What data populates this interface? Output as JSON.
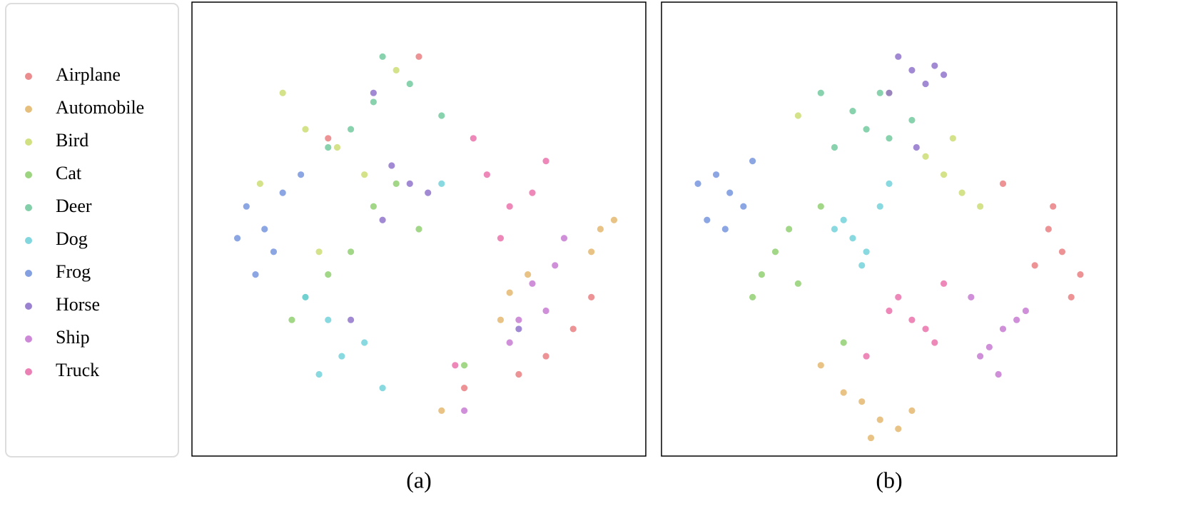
{
  "chart_data": [
    {
      "type": "scatter",
      "title": "(a)",
      "xlim": [
        0,
        100
      ],
      "ylim": [
        0,
        100
      ],
      "series": [
        {
          "name": "Airplane",
          "color": "#e8787a",
          "x": [
            78,
            84,
            72,
            88,
            60,
            30,
            50
          ],
          "y": [
            22,
            28,
            18,
            35,
            15,
            70,
            88
          ]
        },
        {
          "name": "Automobile",
          "color": "#e2b466",
          "x": [
            90,
            88,
            93,
            70,
            68,
            74,
            55
          ],
          "y": [
            50,
            45,
            52,
            36,
            30,
            40,
            10
          ]
        },
        {
          "name": "Bird",
          "color": "#c9dc6b",
          "x": [
            25,
            32,
            20,
            38,
            45,
            15,
            28
          ],
          "y": [
            72,
            68,
            80,
            62,
            85,
            60,
            45
          ]
        },
        {
          "name": "Cat",
          "color": "#8ccd6a",
          "x": [
            40,
            35,
            45,
            30,
            50,
            22,
            60
          ],
          "y": [
            55,
            45,
            60,
            40,
            50,
            30,
            20
          ]
        },
        {
          "name": "Deer",
          "color": "#6cc79a",
          "x": [
            40,
            35,
            48,
            30,
            55,
            42,
            25
          ],
          "y": [
            78,
            72,
            82,
            68,
            75,
            88,
            35
          ]
        },
        {
          "name": "Dog",
          "color": "#6ccfd8",
          "x": [
            33,
            28,
            38,
            30,
            42,
            25,
            55
          ],
          "y": [
            22,
            18,
            25,
            30,
            15,
            35,
            60
          ]
        },
        {
          "name": "Frog",
          "color": "#6f8fdc",
          "x": [
            12,
            16,
            20,
            10,
            18,
            24,
            14
          ],
          "y": [
            55,
            50,
            58,
            48,
            45,
            62,
            40
          ]
        },
        {
          "name": "Horse",
          "color": "#8a6cc8",
          "x": [
            48,
            44,
            52,
            42,
            72,
            40,
            35
          ],
          "y": [
            60,
            64,
            58,
            52,
            28,
            80,
            30
          ]
        },
        {
          "name": "Ship",
          "color": "#c474d0",
          "x": [
            75,
            78,
            72,
            80,
            70,
            82,
            60
          ],
          "y": [
            38,
            32,
            30,
            42,
            25,
            48,
            10
          ]
        },
        {
          "name": "Truck",
          "color": "#e86aa8",
          "x": [
            70,
            65,
            75,
            68,
            78,
            62,
            58
          ],
          "y": [
            55,
            62,
            58,
            48,
            65,
            70,
            20
          ]
        }
      ]
    },
    {
      "type": "scatter",
      "title": "(b)",
      "xlim": [
        0,
        100
      ],
      "ylim": [
        0,
        100
      ],
      "series": [
        {
          "color": "#e8787a",
          "x": [
            88,
            85,
            92,
            82,
            90,
            86,
            75
          ],
          "y": [
            45,
            50,
            40,
            42,
            35,
            55,
            60
          ]
        },
        {
          "color": "#e2b466",
          "x": [
            48,
            44,
            52,
            40,
            55,
            46,
            35
          ],
          "y": [
            8,
            12,
            6,
            14,
            10,
            4,
            20
          ]
        },
        {
          "color": "#c9dc6b",
          "x": [
            62,
            66,
            58,
            70,
            64,
            50,
            30
          ],
          "y": [
            62,
            58,
            66,
            55,
            70,
            80,
            75
          ]
        },
        {
          "color": "#8ccd6a",
          "x": [
            25,
            22,
            28,
            30,
            35,
            20,
            40
          ],
          "y": [
            45,
            40,
            50,
            38,
            55,
            35,
            25
          ]
        },
        {
          "color": "#6cc79a",
          "x": [
            45,
            42,
            50,
            48,
            38,
            55,
            35
          ],
          "y": [
            72,
            76,
            70,
            80,
            68,
            74,
            80
          ]
        },
        {
          "color": "#6ccfd8",
          "x": [
            42,
            40,
            45,
            38,
            48,
            44,
            50
          ],
          "y": [
            48,
            52,
            45,
            50,
            55,
            42,
            60
          ]
        },
        {
          "color": "#6f8fdc",
          "x": [
            15,
            12,
            18,
            10,
            20,
            14,
            8
          ],
          "y": [
            58,
            62,
            55,
            52,
            65,
            50,
            60
          ]
        },
        {
          "color": "#8a6cc8",
          "x": [
            55,
            52,
            58,
            60,
            50,
            62,
            56
          ],
          "y": [
            85,
            88,
            82,
            86,
            80,
            84,
            68
          ]
        },
        {
          "color": "#c474d0",
          "x": [
            75,
            72,
            78,
            70,
            80,
            74,
            68
          ],
          "y": [
            28,
            24,
            30,
            22,
            32,
            18,
            35
          ]
        },
        {
          "color": "#e86aa8",
          "x": [
            55,
            52,
            58,
            60,
            50,
            62,
            45
          ],
          "y": [
            30,
            35,
            28,
            25,
            32,
            38,
            22
          ]
        }
      ]
    }
  ]
}
